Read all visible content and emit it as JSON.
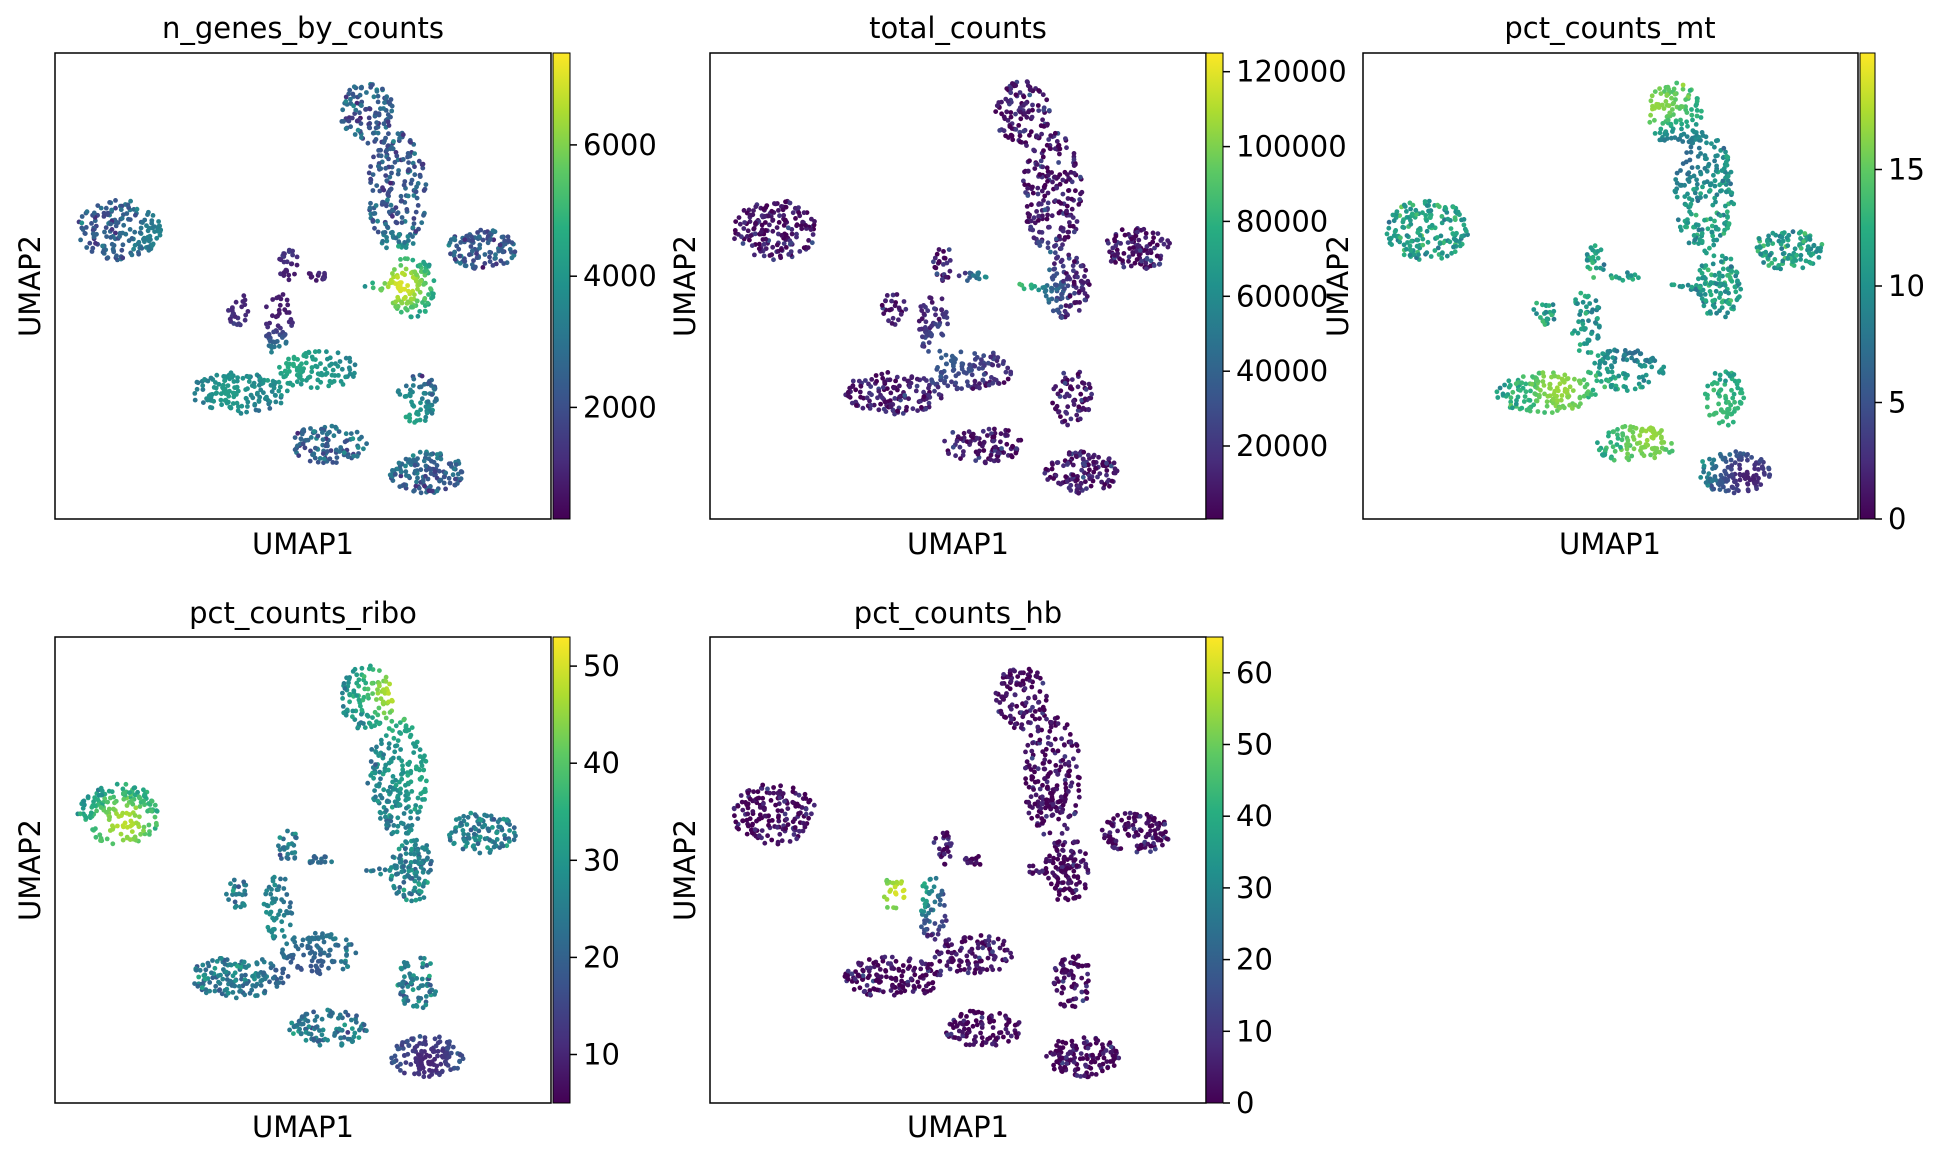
{
  "chart_data": [
    {
      "type": "scatter",
      "title": "n_genes_by_counts",
      "xlabel": "UMAP1",
      "ylabel": "UMAP2",
      "colormap": "viridis",
      "colorbar": {
        "min": 300,
        "max": 7400,
        "ticks": [
          2000,
          4000,
          6000
        ],
        "tick_labels": [
          "2000",
          "4000",
          "6000"
        ]
      },
      "base_level": 0.28,
      "hot_spots": [
        {
          "x": 0.7,
          "y": 0.5,
          "v": 0.95
        },
        {
          "x": 0.48,
          "y": 0.65,
          "v": 0.75
        },
        {
          "x": 0.7,
          "y": 0.79,
          "v": 0.6
        },
        {
          "x": 0.35,
          "y": 0.73,
          "v": 0.55
        },
        {
          "x": 0.22,
          "y": 0.4,
          "v": 0.45
        },
        {
          "x": 0.55,
          "y": 0.72,
          "v": 0.55
        }
      ],
      "cold_spots": [
        {
          "x": 0.45,
          "y": 0.55,
          "v": 0.05
        },
        {
          "x": 0.5,
          "y": 0.48,
          "v": 0.06
        },
        {
          "x": 0.38,
          "y": 0.52,
          "v": 0.1
        }
      ]
    },
    {
      "type": "scatter",
      "title": "total_counts",
      "xlabel": "UMAP1",
      "ylabel": "UMAP2",
      "colormap": "viridis",
      "colorbar": {
        "min": 500,
        "max": 125000,
        "ticks": [
          20000,
          40000,
          60000,
          80000,
          100000,
          120000
        ],
        "tick_labels": [
          "20000",
          "40000",
          "60000",
          "80000",
          "100000",
          "120000"
        ]
      },
      "base_level": 0.06,
      "hot_spots": [
        {
          "x": 0.61,
          "y": 0.5,
          "v": 0.9
        },
        {
          "x": 0.48,
          "y": 0.65,
          "v": 0.3
        },
        {
          "x": 0.6,
          "y": 0.58,
          "v": 0.25
        }
      ],
      "cold_spots": []
    },
    {
      "type": "scatter",
      "title": "pct_counts_mt",
      "xlabel": "UMAP1",
      "ylabel": "UMAP2",
      "colormap": "viridis",
      "colorbar": {
        "min": 0,
        "max": 20,
        "ticks": [
          0,
          5,
          10,
          15
        ],
        "tick_labels": [
          "0",
          "5",
          "10",
          "15"
        ]
      },
      "base_level": 0.55,
      "hot_spots": [
        {
          "x": 0.6,
          "y": 0.14,
          "v": 0.95
        },
        {
          "x": 0.4,
          "y": 0.72,
          "v": 0.85
        },
        {
          "x": 0.58,
          "y": 0.82,
          "v": 0.85
        },
        {
          "x": 0.72,
          "y": 0.78,
          "v": 0.7
        }
      ],
      "cold_spots": [
        {
          "x": 0.78,
          "y": 0.91,
          "v": 0.08
        },
        {
          "x": 0.63,
          "y": 0.22,
          "v": 0.3
        },
        {
          "x": 0.55,
          "y": 0.6,
          "v": 0.3
        }
      ]
    },
    {
      "type": "scatter",
      "title": "pct_counts_ribo",
      "xlabel": "UMAP1",
      "ylabel": "UMAP2",
      "colormap": "viridis",
      "colorbar": {
        "min": 5,
        "max": 53,
        "ticks": [
          10,
          20,
          30,
          40,
          50
        ],
        "tick_labels": [
          "10",
          "20",
          "30",
          "40",
          "50"
        ]
      },
      "base_level": 0.42,
      "hot_spots": [
        {
          "x": 0.69,
          "y": 0.12,
          "v": 0.92
        },
        {
          "x": 0.14,
          "y": 0.4,
          "v": 0.9
        },
        {
          "x": 0.75,
          "y": 0.3,
          "v": 0.6
        },
        {
          "x": 0.48,
          "y": 0.6,
          "v": 0.65
        }
      ],
      "cold_spots": [
        {
          "x": 0.75,
          "y": 0.91,
          "v": 0.1
        },
        {
          "x": 0.52,
          "y": 0.56,
          "v": 0.2
        },
        {
          "x": 0.5,
          "y": 0.72,
          "v": 0.25
        }
      ]
    },
    {
      "type": "scatter",
      "title": "pct_counts_hb",
      "xlabel": "UMAP1",
      "ylabel": "UMAP2",
      "colormap": "viridis",
      "colorbar": {
        "min": 0,
        "max": 65,
        "ticks": [
          0,
          10,
          20,
          30,
          40,
          50,
          60
        ],
        "tick_labels": [
          "0",
          "10",
          "20",
          "30",
          "40",
          "50",
          "60"
        ]
      },
      "base_level": 0.02,
      "hot_spots": [
        {
          "x": 0.38,
          "y": 0.55,
          "v": 0.95
        }
      ],
      "cold_spots": []
    }
  ]
}
